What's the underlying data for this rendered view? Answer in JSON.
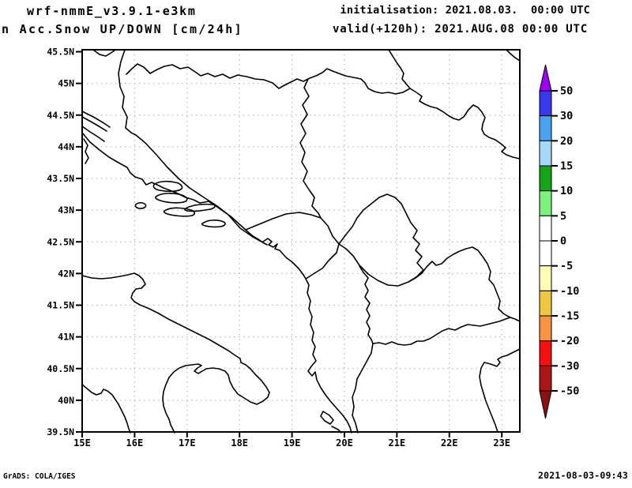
{
  "header": {
    "title_line1": "wrf-nmmE_v3.9.1-e3km",
    "title_line2": "n Acc.Snow UP/DOWN [cm/24h]",
    "init_line": "initialisation: 2021.08.03.  00:00 UTC",
    "valid_line": "valid(+120h): 2021.AUG.08 00:00 UTC"
  },
  "footer": {
    "left": "GrADS: COLA/IGES",
    "right": "2021-08-03-09:43"
  },
  "axes": {
    "lat_labels": [
      "45.5N",
      "45N",
      "44.5N",
      "44N",
      "43.5N",
      "43N",
      "42.5N",
      "42N",
      "41.5N",
      "41N",
      "40.5N",
      "40N",
      "39.5N"
    ],
    "lon_labels": [
      "15E",
      "16E",
      "17E",
      "18E",
      "19E",
      "20E",
      "21E",
      "22E",
      "23E"
    ]
  },
  "colorbar": {
    "units": "cm/24h",
    "tick_labels": [
      "50",
      "30",
      "20",
      "15",
      "10",
      "5",
      "0",
      "-5",
      "-10",
      "-15",
      "-20",
      "-30",
      "-50"
    ],
    "colors_top_to_bottom": [
      "#a000f0",
      "#3838f0",
      "#4aa3f0",
      "#a8d8f8",
      "#16a316",
      "#7df07d",
      "#ffffff",
      "#ffffff",
      "#fdfdb5",
      "#efc841",
      "#f89442",
      "#f31010",
      "#a81616",
      "#8b1212"
    ]
  },
  "chart_data": {
    "type": "map",
    "title": "wrf-nmmE_v3.9.1-e3km — n Acc.Snow UP/DOWN [cm/24h]",
    "region": "Adriatic Sea / Western Balkans (Italy, Croatia, Bosnia, Serbia, Montenegro, Kosovo, Albania, North Macedonia, northern Greece)",
    "lon_range_deg_east": [
      15,
      23.3
    ],
    "lat_range_deg_north": [
      39.5,
      45.5
    ],
    "graticule": "dotted gridlines every 1 deg lon x 0.5 deg lat",
    "colorbar_levels": [
      -50,
      -30,
      -20,
      -15,
      -10,
      -5,
      0,
      5,
      10,
      15,
      20,
      30,
      50
    ],
    "field_note": "No shaded snow-accumulation values are visible on the map; the field is in the 0 (white) range everywhere",
    "legend_position": "right"
  }
}
